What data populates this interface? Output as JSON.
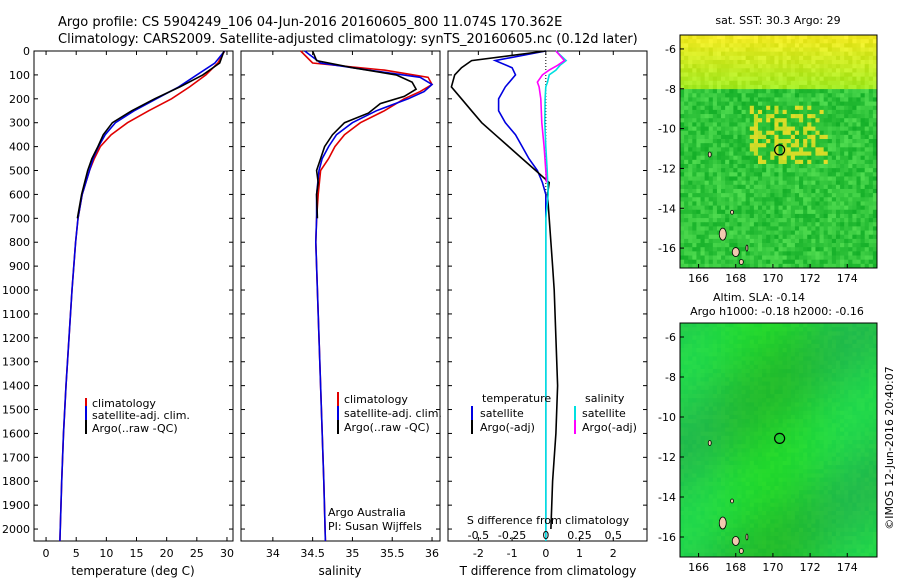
{
  "header": {
    "line1": "Argo profile: CS 5904249_106 04-Jun-2016 20160605_800 11.074S 170.362E",
    "line2": "Climatology: CARS2009. Satellite-adjusted climatology: synTS_20160605.nc (0.12d later)"
  },
  "credits": {
    "org": "Argo Australia",
    "pi": "PI: Susan Wijffels"
  },
  "stamp": "©IMOS 12-Jun-2016 20:40:07",
  "colors": {
    "climatology": "#e00000",
    "satellite": "#0000e0",
    "argo": "#000000",
    "sal_sat": "#00e0e0",
    "sal_argo": "#ff00ff"
  },
  "chart_data": [
    {
      "type": "line",
      "xlabel": "temperature (deg C)",
      "ylabel": "",
      "xlim": [
        -2,
        31
      ],
      "ylim": [
        2050,
        0
      ],
      "xticks": [
        0,
        5,
        10,
        15,
        20,
        25,
        30
      ],
      "yticks": [
        0,
        100,
        200,
        300,
        400,
        500,
        600,
        700,
        800,
        900,
        1000,
        1100,
        1200,
        1300,
        1400,
        1500,
        1600,
        1700,
        1800,
        1900,
        2000
      ],
      "legend": [
        "climatology",
        "satellite-adj. clim.",
        "Argo(..raw -QC)"
      ],
      "series": [
        {
          "name": "climatology",
          "depth": [
            0,
            50,
            100,
            150,
            200,
            250,
            300,
            350,
            400,
            450,
            500,
            600,
            700,
            800,
            1000,
            1200,
            1400,
            1600,
            1800,
            2050
          ],
          "values": [
            29.6,
            28.5,
            26.5,
            23.8,
            20.8,
            17.0,
            13.5,
            10.8,
            9.0,
            8.0,
            7.2,
            6.0,
            5.3,
            4.9,
            4.3,
            3.8,
            3.3,
            2.9,
            2.6,
            2.3
          ]
        },
        {
          "name": "satellite-adj. clim.",
          "depth": [
            0,
            50,
            100,
            150,
            200,
            250,
            300,
            350,
            400,
            450,
            500,
            600,
            700,
            800,
            1000,
            1200,
            1400,
            1600,
            1800,
            2050
          ],
          "values": [
            29.6,
            28.0,
            25.0,
            22.0,
            18.3,
            14.6,
            11.5,
            9.8,
            8.7,
            7.8,
            7.2,
            6.0,
            5.3,
            4.9,
            4.3,
            3.8,
            3.3,
            2.9,
            2.6,
            2.3
          ]
        },
        {
          "name": "Argo(..raw -QC)",
          "depth": [
            0,
            50,
            100,
            150,
            200,
            250,
            300,
            350,
            400,
            450,
            500,
            600,
            700
          ],
          "values": [
            29.5,
            28.8,
            26.0,
            22.2,
            18.0,
            14.2,
            11.0,
            9.5,
            8.6,
            7.6,
            6.9,
            5.9,
            5.2
          ]
        }
      ]
    },
    {
      "type": "line",
      "xlabel": "salinity",
      "ylabel": "",
      "xlim": [
        33.6,
        36.1
      ],
      "ylim": [
        2050,
        0
      ],
      "xticks": [
        34,
        34.5,
        35,
        35.5,
        36
      ],
      "legend": [
        "climatology",
        "satellite-adj. clim.",
        "Argo(..raw -QC)"
      ],
      "series": [
        {
          "name": "climatology",
          "depth": [
            0,
            50,
            80,
            110,
            140,
            170,
            200,
            250,
            300,
            350,
            400,
            450,
            500,
            600,
            700,
            800,
            1000,
            1200,
            1500,
            1800,
            2050
          ],
          "values": [
            34.35,
            34.5,
            35.4,
            35.95,
            36.0,
            35.85,
            35.65,
            35.4,
            35.1,
            34.9,
            34.78,
            34.7,
            34.6,
            34.57,
            34.55,
            34.54,
            34.56,
            34.58,
            34.61,
            34.64,
            34.66
          ]
        },
        {
          "name": "satellite-adj. clim.",
          "depth": [
            0,
            50,
            80,
            110,
            140,
            170,
            200,
            250,
            300,
            350,
            400,
            450,
            500,
            600,
            700,
            800,
            1000,
            1200,
            1500,
            1800,
            2050
          ],
          "values": [
            34.4,
            34.6,
            35.2,
            35.85,
            36.0,
            35.9,
            35.7,
            35.3,
            35.0,
            34.8,
            34.7,
            34.62,
            34.58,
            34.55,
            34.55,
            34.54,
            34.56,
            34.58,
            34.61,
            34.64,
            34.66
          ]
        },
        {
          "name": "Argo(..raw -QC)",
          "depth": [
            0,
            40,
            70,
            100,
            130,
            160,
            190,
            220,
            260,
            300,
            350,
            400,
            450,
            500,
            550,
            600,
            700
          ],
          "values": [
            34.5,
            34.55,
            35.0,
            35.55,
            35.75,
            35.8,
            35.65,
            35.35,
            35.2,
            34.9,
            34.75,
            34.65,
            34.6,
            34.55,
            34.57,
            34.55,
            34.56
          ]
        }
      ]
    },
    {
      "type": "line",
      "xlabel": "T difference from climatology",
      "x2label": "S difference from climatology",
      "ylabel": "",
      "xlim": [
        -2.9,
        3.0
      ],
      "ylim": [
        2050,
        0
      ],
      "xticks": [
        -2,
        -1,
        0,
        1,
        2
      ],
      "x2ticks": [
        -0.5,
        -0.25,
        0,
        0.25,
        0.5
      ],
      "legend": [
        "temperature",
        "satellite",
        "Argo(-adj)",
        "salinity",
        "satellite",
        "Argo(-adj)"
      ],
      "series": [
        {
          "name": "temperature satellite",
          "depth": [
            0,
            40,
            70,
            100,
            150,
            200,
            250,
            300,
            350,
            400,
            450,
            500,
            550,
            600,
            700,
            800,
            1000,
            1200,
            1500,
            1800,
            2050
          ],
          "values": [
            0.0,
            -1.5,
            -1.0,
            -0.9,
            -1.2,
            -1.4,
            -1.4,
            -1.2,
            -0.9,
            -0.7,
            -0.5,
            -0.25,
            -0.1,
            0.0,
            0.0,
            0.0,
            0.0,
            0.0,
            0.0,
            0.0,
            0.0
          ]
        },
        {
          "name": "temperature Argo(-adj)",
          "depth": [
            0,
            40,
            70,
            100,
            150,
            200,
            250,
            300,
            350,
            400,
            450,
            500,
            550,
            600,
            700,
            800,
            900,
            1000,
            1200,
            1400,
            1600,
            1800,
            2000
          ],
          "values": [
            0.0,
            -2.2,
            -2.5,
            -2.7,
            -2.8,
            -2.5,
            -2.2,
            -1.9,
            -1.5,
            -1.1,
            -0.7,
            -0.3,
            0.1,
            0.05,
            0.1,
            0.15,
            0.2,
            0.25,
            0.3,
            0.35,
            0.3,
            0.2,
            0.15
          ]
        },
        {
          "name": "salinity satellite",
          "depth": [
            0,
            40,
            60,
            80,
            100,
            130,
            150,
            200,
            300,
            400,
            500,
            600,
            700,
            800,
            1000,
            1500,
            2050
          ],
          "values": [
            0.3,
            0.6,
            0.42,
            0.3,
            0.1,
            0.05,
            0.0,
            -0.02,
            -0.03,
            0.0,
            0.04,
            0.07,
            0.0,
            0.0,
            0.0,
            0.0,
            0.0
          ]
        },
        {
          "name": "salinity Argo(-adj)",
          "depth": [
            0,
            40,
            60,
            80,
            100,
            130,
            150,
            200,
            300,
            400,
            500,
            550
          ],
          "values": [
            0.3,
            0.55,
            0.35,
            0.1,
            -0.1,
            -0.25,
            -0.2,
            -0.15,
            -0.12,
            -0.05,
            0.0,
            0.02
          ]
        }
      ]
    },
    {
      "type": "heatmap",
      "title": "sat. SST: 30.3 Argo: 29",
      "xlim": [
        165,
        175.6
      ],
      "ylim": [
        -17,
        -5.3
      ],
      "xticks": [
        166,
        168,
        170,
        172,
        174
      ],
      "yticks": [
        -6,
        -8,
        -10,
        -12,
        -14,
        -16
      ],
      "marker": {
        "lon": 170.36,
        "lat": -11.07
      }
    },
    {
      "type": "heatmap",
      "title": "Altim. SLA: -0.14",
      "subtitle": "Argo h1000: -0.18 h2000: -0.16",
      "xlim": [
        165,
        175.6
      ],
      "ylim": [
        -17,
        -5.3
      ],
      "xticks": [
        166,
        168,
        170,
        172,
        174
      ],
      "yticks": [
        -6,
        -8,
        -10,
        -12,
        -14,
        -16
      ],
      "marker": {
        "lon": 170.36,
        "lat": -11.07
      }
    }
  ]
}
